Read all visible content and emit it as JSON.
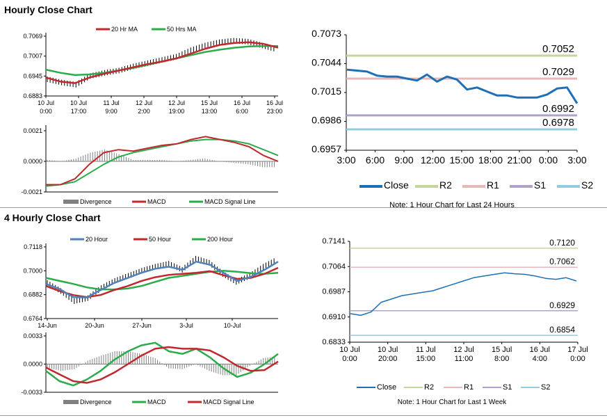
{
  "sections": {
    "hourly_title": "Hourly Close Chart",
    "four_hourly_title": "4 Hourly Close Chart"
  },
  "colors": {
    "close": "#1f6fb4",
    "ma_red": "#c0282d",
    "ma_green": "#2bab4a",
    "blue_ma": "#4f81bd",
    "divergence": "#808080",
    "r2": "#c3d69b",
    "r1": "#e6b9b8",
    "s1": "#b3a2c7",
    "s2": "#93cddd"
  },
  "chart_data": [
    {
      "id": "hourly-ma",
      "type": "line",
      "legend": [
        "20 Hr MA",
        "50 Hrs MA"
      ],
      "yticks": [
        "0.7069",
        "0.7007",
        "0.6945",
        "0.6883"
      ],
      "ylim": [
        0.6883,
        0.7069
      ],
      "xticks": [
        [
          "10 Jul",
          "0:00"
        ],
        [
          "10 Jul",
          "17:00"
        ],
        [
          "11 Jul",
          "9:00"
        ],
        [
          "12 Jul",
          "2:00"
        ],
        [
          "12 Jul",
          "19:00"
        ],
        [
          "15 Jul",
          "13:00"
        ],
        [
          "16 Jul",
          "6:00"
        ],
        [
          "16 Jul",
          "23:00"
        ]
      ],
      "price": [
        0.6935,
        0.6925,
        0.6918,
        0.6945,
        0.6955,
        0.6962,
        0.6975,
        0.6985,
        0.6995,
        0.7005,
        0.7025,
        0.704,
        0.705,
        0.7055,
        0.7052,
        0.704,
        0.7028
      ],
      "ma20": [
        0.694,
        0.6928,
        0.6923,
        0.694,
        0.6952,
        0.6962,
        0.6972,
        0.6982,
        0.699,
        0.7,
        0.7015,
        0.703,
        0.7042,
        0.7048,
        0.705,
        0.7045,
        0.7033
      ],
      "ma50": [
        0.6965,
        0.6955,
        0.6948,
        0.695,
        0.6955,
        0.6962,
        0.697,
        0.698,
        0.699,
        0.7,
        0.701,
        0.702,
        0.7027,
        0.7033,
        0.7037,
        0.7038,
        0.7038
      ]
    },
    {
      "id": "hourly-macd",
      "type": "line",
      "legend": [
        "Divergence",
        "MACD",
        "MACD Signal Line"
      ],
      "yticks": [
        "0.0021",
        "0.0000",
        "-0.0021"
      ],
      "ylim": [
        -0.0021,
        0.0021
      ],
      "macd": [
        -0.0016,
        -0.0016,
        -0.0012,
        -0.0002,
        0.0006,
        0.0008,
        0.0007,
        0.0009,
        0.0011,
        0.0012,
        0.0015,
        0.0017,
        0.0015,
        0.0013,
        0.001,
        0.0004,
        0.0
      ],
      "signal": [
        -0.0017,
        -0.0016,
        -0.0014,
        -0.0008,
        -0.0002,
        0.0003,
        0.0006,
        0.0008,
        0.001,
        0.0012,
        0.0014,
        0.0015,
        0.0015,
        0.0014,
        0.0012,
        0.0008,
        0.0004
      ],
      "divergence": [
        0.0001,
        0.0,
        0.0002,
        0.0006,
        0.0008,
        0.0005,
        0.0001,
        0.0001,
        0.0001,
        0.0,
        0.0001,
        0.0002,
        0.0,
        -0.0001,
        -0.0002,
        -0.0004,
        -0.0004
      ]
    },
    {
      "id": "hourly-pivots",
      "type": "line",
      "yticks": [
        "0.7073",
        "0.7044",
        "0.7015",
        "0.6986",
        "0.6957"
      ],
      "ylim": [
        0.6957,
        0.7073
      ],
      "xticks": [
        "3:00",
        "6:00",
        "9:00",
        "12:00",
        "15:00",
        "18:00",
        "21:00",
        "0:00",
        "3:00"
      ],
      "close": [
        0.7038,
        0.7037,
        0.7036,
        0.7032,
        0.7031,
        0.7031,
        0.7029,
        0.7027,
        0.7033,
        0.7026,
        0.7031,
        0.7028,
        0.7018,
        0.702,
        0.7016,
        0.7012,
        0.7012,
        0.701,
        0.701,
        0.701,
        0.7013,
        0.7019,
        0.702,
        0.7004
      ],
      "levels": {
        "R2": 0.7052,
        "R1": 0.7029,
        "S1": 0.6992,
        "S2": 0.6978
      },
      "level_labels": [
        "0.7052",
        "0.7029",
        "0.6992",
        "0.6978"
      ],
      "legend": [
        "Close",
        "R2",
        "R1",
        "S1",
        "S2"
      ],
      "note": "Note: 1 Hour Chart for Last 24 Hours"
    },
    {
      "id": "four-hourly-ma",
      "type": "line",
      "legend": [
        "20 Hour",
        "50 Hour",
        "200 Hour"
      ],
      "yticks": [
        "0.7118",
        "0.7000",
        "0.6882",
        "0.6764"
      ],
      "ylim": [
        0.6764,
        0.7118
      ],
      "xticks": [
        "14-Jun",
        "20-Jun",
        "27-Jun",
        "3-Jul",
        "10-Jul"
      ],
      "price": [
        0.694,
        0.69,
        0.685,
        0.6865,
        0.6915,
        0.695,
        0.6975,
        0.7,
        0.702,
        0.7035,
        0.7005,
        0.706,
        0.704,
        0.6985,
        0.6945,
        0.6975,
        0.702,
        0.7055
      ],
      "ma20": [
        0.6935,
        0.691,
        0.687,
        0.6868,
        0.6905,
        0.694,
        0.6965,
        0.699,
        0.701,
        0.702,
        0.7005,
        0.7045,
        0.703,
        0.699,
        0.695,
        0.697,
        0.7005,
        0.7045
      ],
      "ma50": [
        0.6925,
        0.69,
        0.688,
        0.687,
        0.688,
        0.6905,
        0.6925,
        0.695,
        0.6968,
        0.698,
        0.6985,
        0.699,
        0.6998,
        0.6978,
        0.696,
        0.6965,
        0.6985,
        0.7015
      ],
      "ma200": [
        0.6965,
        0.695,
        0.6935,
        0.6918,
        0.6908,
        0.6908,
        0.6912,
        0.6925,
        0.6945,
        0.6965,
        0.6975,
        0.6985,
        0.6995,
        0.7,
        0.6995,
        0.6988,
        0.6985,
        0.699
      ]
    },
    {
      "id": "four-hourly-macd",
      "type": "line",
      "legend": [
        "Divergence",
        "MACD",
        "MACD Signal Line"
      ],
      "yticks": [
        "0.0033",
        "0.0000",
        "-0.0033"
      ],
      "ylim": [
        -0.0033,
        0.0033
      ],
      "macd": [
        -0.0008,
        -0.002,
        -0.0025,
        -0.0018,
        -0.0008,
        0.0005,
        0.0015,
        0.0022,
        0.0025,
        0.0015,
        0.0012,
        0.0018,
        0.0008,
        -0.0005,
        -0.0015,
        -0.001,
        0.0,
        0.0012
      ],
      "signal": [
        -0.0004,
        -0.0012,
        -0.002,
        -0.0022,
        -0.0018,
        -0.001,
        0.0,
        0.001,
        0.0018,
        0.002,
        0.0018,
        0.0018,
        0.0016,
        0.0008,
        -0.0002,
        -0.0008,
        -0.0007,
        0.0003
      ],
      "divergence": [
        -0.0004,
        -0.0008,
        -0.0006,
        0.0004,
        0.001,
        0.0015,
        0.0015,
        0.0012,
        0.0007,
        -0.0005,
        -0.0006,
        0.0,
        -0.0008,
        -0.0013,
        -0.0013,
        -0.0002,
        0.0007,
        0.0009
      ]
    },
    {
      "id": "four-hourly-pivots",
      "type": "line",
      "yticks": [
        "0.7141",
        "0.7064",
        "0.6987",
        "0.6910",
        "0.6833"
      ],
      "ylim": [
        0.6833,
        0.7141
      ],
      "xticks": [
        [
          "10 Jul",
          "0:00"
        ],
        [
          "10 Jul",
          "20:00"
        ],
        [
          "11 Jul",
          "15:00"
        ],
        [
          "12 Jul",
          "11:00"
        ],
        [
          "15 Jul",
          "8:00"
        ],
        [
          "16 Jul",
          "4:00"
        ],
        [
          "17 Jul",
          "0:00"
        ]
      ],
      "close": [
        0.692,
        0.6915,
        0.6925,
        0.6955,
        0.6965,
        0.6975,
        0.698,
        0.6985,
        0.699,
        0.7,
        0.701,
        0.702,
        0.703,
        0.7035,
        0.704,
        0.7045,
        0.7042,
        0.704,
        0.7035,
        0.7028,
        0.7025,
        0.703,
        0.702
      ],
      "levels": {
        "R2": 0.712,
        "R1": 0.7062,
        "S1": 0.6929,
        "S2": 0.6854
      },
      "level_labels": [
        "0.7120",
        "0.7062",
        "0.6929",
        "0.6854"
      ],
      "legend": [
        "Close",
        "R2",
        "R1",
        "S1",
        "S2"
      ],
      "note": "Note: 1 Hour Chart for Last 1 Week"
    }
  ]
}
